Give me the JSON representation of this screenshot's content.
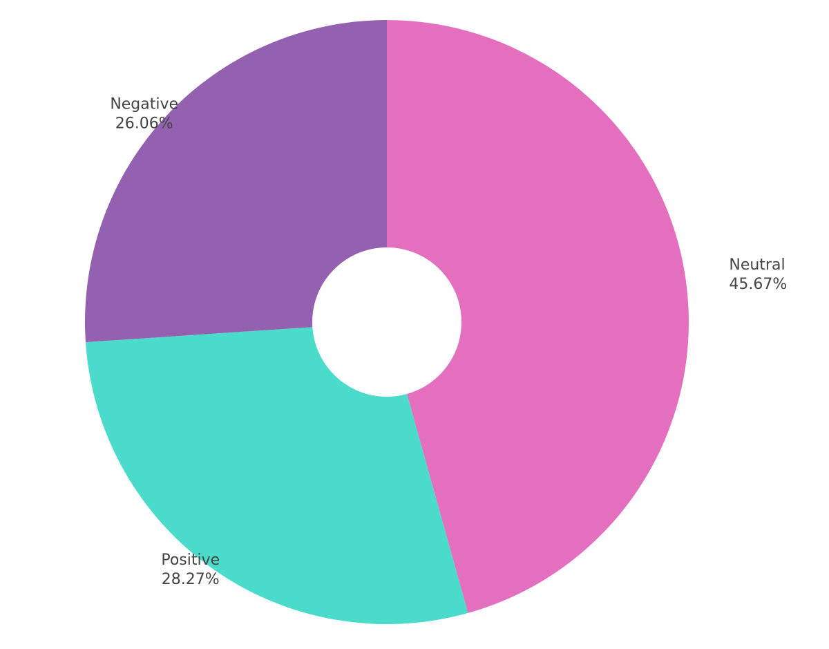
{
  "chart_data": {
    "type": "donut",
    "categories": [
      "Neutral",
      "Positive",
      "Negative"
    ],
    "values": [
      45.67,
      28.27,
      26.06
    ],
    "value_labels": [
      "45.67%",
      "28.27%",
      "26.06%"
    ],
    "colors": [
      "#e46fbe",
      "#4adbcb",
      "#9461b0"
    ]
  }
}
